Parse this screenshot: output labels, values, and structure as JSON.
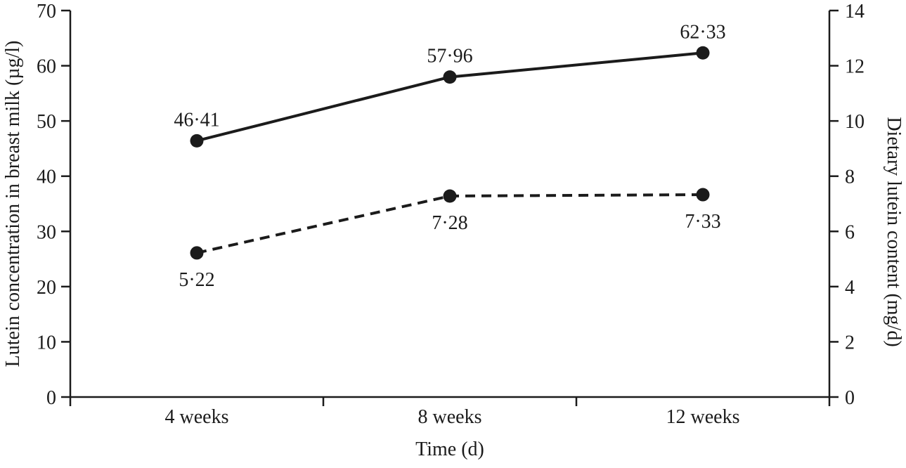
{
  "figure": {
    "background": "#ffffff",
    "ink_color": "#1b1b1b"
  },
  "chart_data": {
    "type": "line",
    "title": "",
    "categories": [
      "4 weeks",
      "8 weeks",
      "12 weeks"
    ],
    "xlabel": "Time (d)",
    "grid": false,
    "legend": "none",
    "marker": "filled-circle",
    "left_axis": {
      "label": "Lutein concentration in breast milk (µg/l)",
      "min": 0,
      "max": 70,
      "step": 10,
      "ticks": [
        0,
        10,
        20,
        30,
        40,
        50,
        60,
        70
      ]
    },
    "right_axis": {
      "label": "Dietary lutein content (mg/d)",
      "min": 0,
      "max": 14,
      "step": 2,
      "ticks": [
        0,
        2,
        4,
        6,
        8,
        10,
        12,
        14
      ]
    },
    "series": [
      {
        "name": "Lutein concentration in breast milk",
        "axis": "left",
        "line_style": "solid",
        "values": [
          46.41,
          57.96,
          62.33
        ],
        "point_labels": [
          "46·41",
          "57·96",
          "62·33"
        ],
        "label_position": "above"
      },
      {
        "name": "Dietary lutein content",
        "axis": "right",
        "line_style": "dashed",
        "values": [
          5.22,
          7.28,
          7.33
        ],
        "point_labels": [
          "5·22",
          "7·28",
          "7·33"
        ],
        "label_position": "below"
      }
    ]
  }
}
